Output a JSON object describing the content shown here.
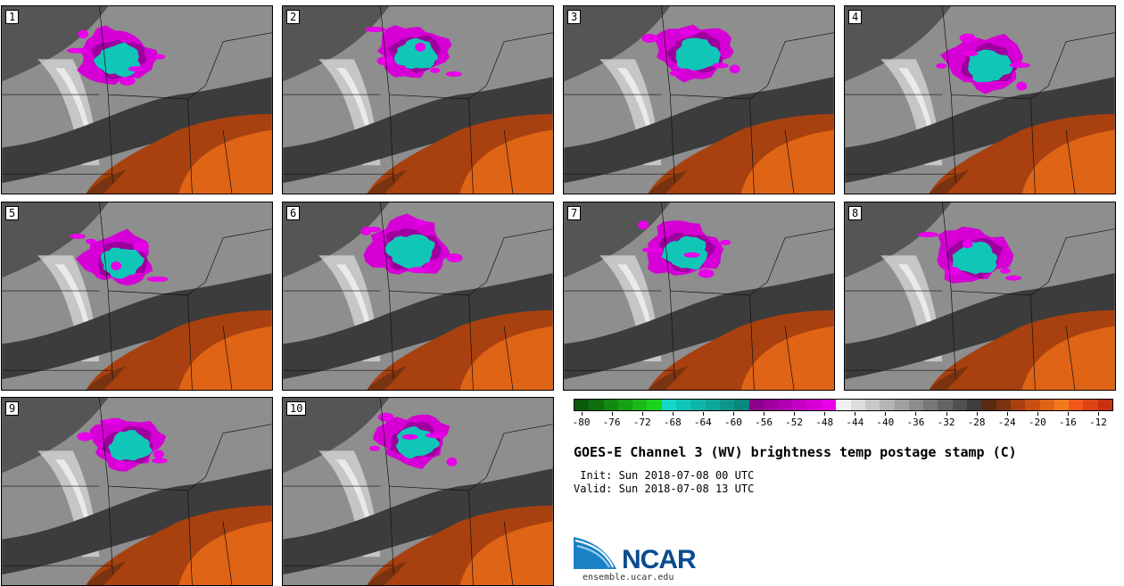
{
  "title": "GOES-E Channel 3 (WV) brightness temp postage stamp (C)",
  "init": " Init: Sun 2018-07-08 00 UTC",
  "valid": "Valid: Sun 2018-07-08 13 UTC",
  "logo": {
    "name": "NCAR",
    "url": "ensemble.ucar.edu"
  },
  "members": [
    {
      "label": "1",
      "storm_cx": 0.42,
      "storm_cy": 0.27,
      "storm_r": 0.15
    },
    {
      "label": "2",
      "storm_cx": 0.48,
      "storm_cy": 0.24,
      "storm_r": 0.14
    },
    {
      "label": "3",
      "storm_cx": 0.48,
      "storm_cy": 0.24,
      "storm_r": 0.15
    },
    {
      "label": "4",
      "storm_cx": 0.52,
      "storm_cy": 0.3,
      "storm_r": 0.15
    },
    {
      "label": "5",
      "storm_cx": 0.43,
      "storm_cy": 0.3,
      "storm_r": 0.14
    },
    {
      "label": "6",
      "storm_cx": 0.46,
      "storm_cy": 0.24,
      "storm_r": 0.16
    },
    {
      "label": "7",
      "storm_cx": 0.44,
      "storm_cy": 0.25,
      "storm_r": 0.15
    },
    {
      "label": "8",
      "storm_cx": 0.47,
      "storm_cy": 0.28,
      "storm_r": 0.15
    },
    {
      "label": "9",
      "storm_cx": 0.46,
      "storm_cy": 0.24,
      "storm_r": 0.14
    },
    {
      "label": "10",
      "storm_cx": 0.48,
      "storm_cy": 0.22,
      "storm_r": 0.14
    }
  ],
  "colorbar": {
    "colors": [
      "#0a5a0a",
      "#0d700d",
      "#128a12",
      "#16a016",
      "#19b919",
      "#1cd21c",
      "#14d7c8",
      "#10c6b7",
      "#0fb5a8",
      "#0ea69a",
      "#0c968b",
      "#0a867c",
      "#8c008c",
      "#9e009e",
      "#b000b0",
      "#c400c4",
      "#d600d6",
      "#e800e8",
      "#f0f0f0",
      "#dcdcdc",
      "#c8c8c8",
      "#b4b4b4",
      "#a0a0a0",
      "#8c8c8c",
      "#787878",
      "#646464",
      "#505050",
      "#3c3c3c",
      "#5a2a10",
      "#7a3310",
      "#a8410f",
      "#c94f12",
      "#e06416",
      "#f07a1c",
      "#f0581a",
      "#dc4414",
      "#c83010"
    ],
    "tick_labels": [
      "-80",
      "-76",
      "-72",
      "-68",
      "-64",
      "-60",
      "-56",
      "-52",
      "-48",
      "-44",
      "-40",
      "-36",
      "-32",
      "-28",
      "-24",
      "-20",
      "-16",
      "-12"
    ],
    "min": -81,
    "max": -10
  }
}
